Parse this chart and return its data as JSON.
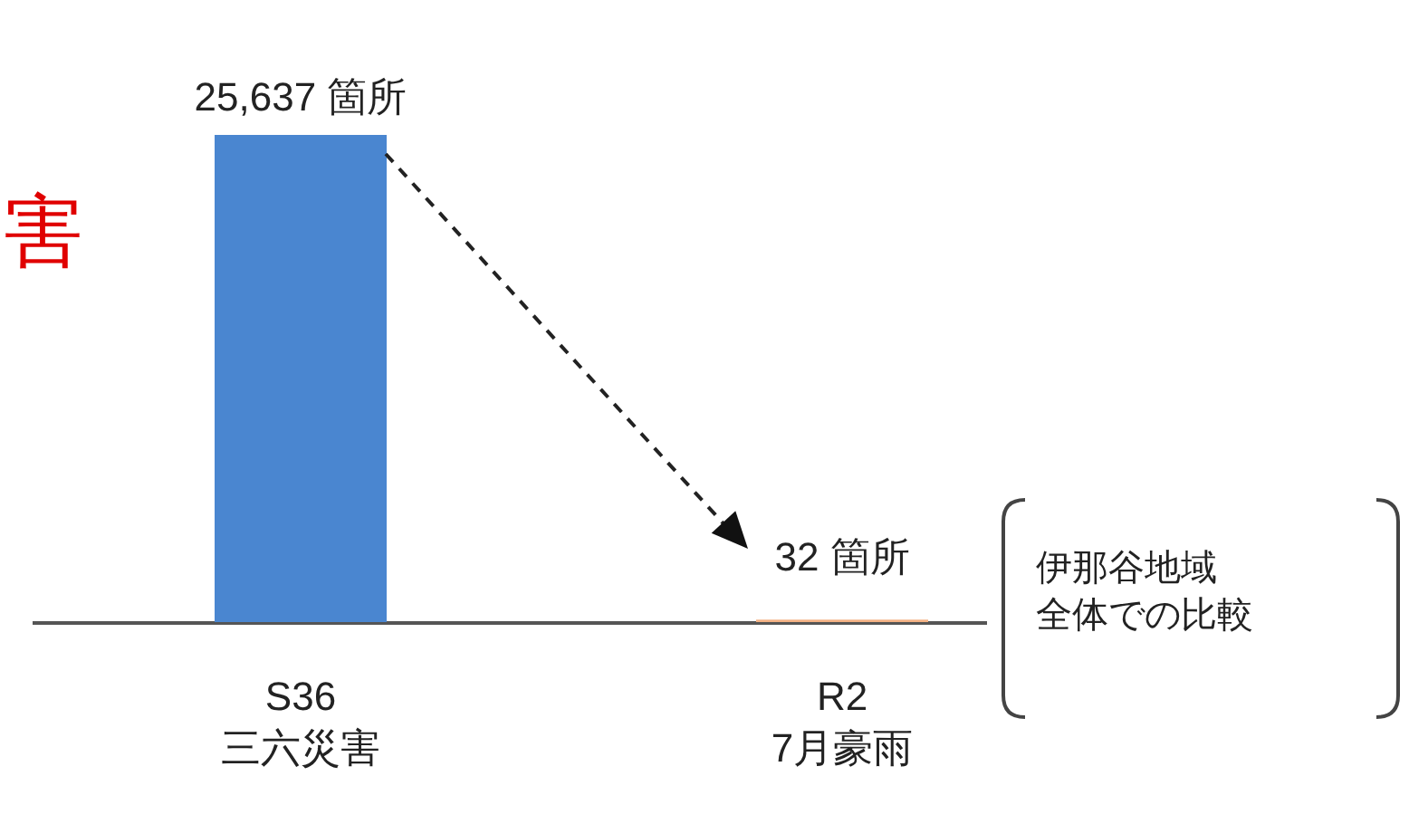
{
  "chart_data": {
    "type": "bar",
    "categories": [
      "S36\n三六災害",
      "R2\n7月豪雨"
    ],
    "values": [
      25637,
      32
    ],
    "colors": [
      "#4a86d0",
      "#f4b183"
    ],
    "value_labels": [
      "25,637 箇所",
      "32 箇所"
    ],
    "annotations": [
      "害",
      "伊那谷地域",
      "全体での比較"
    ]
  }
}
